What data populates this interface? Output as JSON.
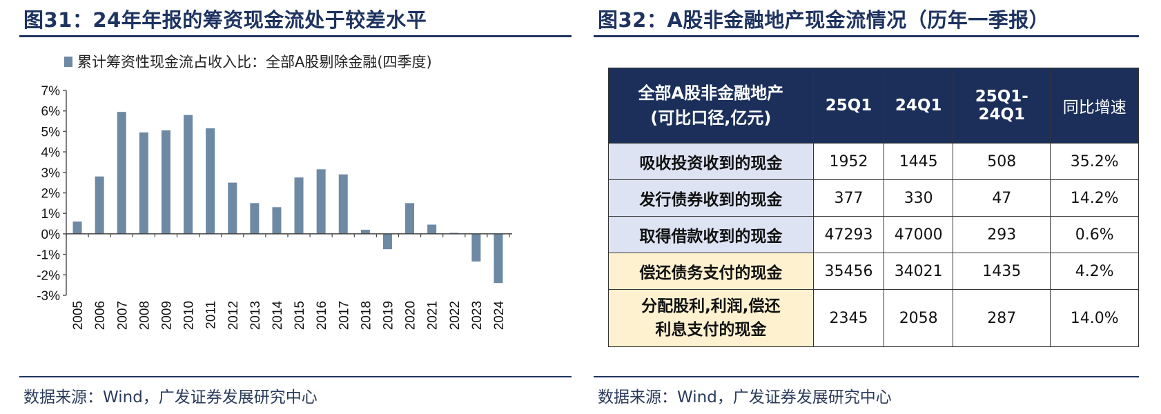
{
  "left_panel": {
    "title": "图31：24年年报的筹资现金流处于较差水平",
    "source": "数据来源：Wind，广发证券发展研究中心"
  },
  "right_panel": {
    "title": "图32：A股非金融地产现金流情况（历年一季报）",
    "source": "数据来源：Wind，广发证券发展研究中心",
    "table": {
      "header": [
        "全部A股非金融地产(可比口径,亿元)",
        "25Q1",
        "24Q1",
        "25Q1-24Q1",
        "同比增速"
      ],
      "header_line1": "全部A股非金融地产",
      "header_line2": "(可比口径,亿元)",
      "rows": [
        {
          "label": "吸收投资收到的现金",
          "cells": [
            "1952",
            "1445",
            "508",
            "35.2%"
          ],
          "color": "blue"
        },
        {
          "label": "发行债券收到的现金",
          "cells": [
            "377",
            "330",
            "47",
            "14.2%"
          ],
          "color": "blue"
        },
        {
          "label": "取得借款收到的现金",
          "cells": [
            "47293",
            "47000",
            "293",
            "0.6%"
          ],
          "color": "blue"
        },
        {
          "label": "偿还债务支付的现金",
          "cells": [
            "35456",
            "34021",
            "1435",
            "4.2%"
          ],
          "color": "yellow"
        },
        {
          "label": "分配股利,利润,偿还利息支付的现金",
          "label_line1": "分配股利,利润,偿还",
          "label_line2": "利息支付的现金",
          "cells": [
            "2345",
            "2058",
            "287",
            "14.0%"
          ],
          "color": "yellow"
        }
      ]
    }
  },
  "chart_data": {
    "type": "bar",
    "categories": [
      "2005",
      "2006",
      "2007",
      "2008",
      "2009",
      "2010",
      "2011",
      "2012",
      "2013",
      "2014",
      "2015",
      "2016",
      "2017",
      "2018",
      "2019",
      "2020",
      "2021",
      "2022",
      "2023",
      "2024"
    ],
    "series": [
      {
        "name": "累计筹资性现金流占收入比：全部A股剔除金融(四季度)",
        "values": [
          0.6,
          2.8,
          5.95,
          4.95,
          5.05,
          5.8,
          5.15,
          2.5,
          1.5,
          1.3,
          2.75,
          3.15,
          2.9,
          0.2,
          -0.75,
          1.5,
          0.45,
          0.05,
          -1.35,
          -2.4
        ],
        "color": "#6d89a4"
      }
    ],
    "yticks": [
      "7%",
      "6%",
      "5%",
      "4%",
      "3%",
      "2%",
      "1%",
      "0%",
      "-1%",
      "-2%",
      "-3%"
    ],
    "ylim": [
      -3,
      7
    ],
    "grid": false,
    "legend_position": "top"
  }
}
